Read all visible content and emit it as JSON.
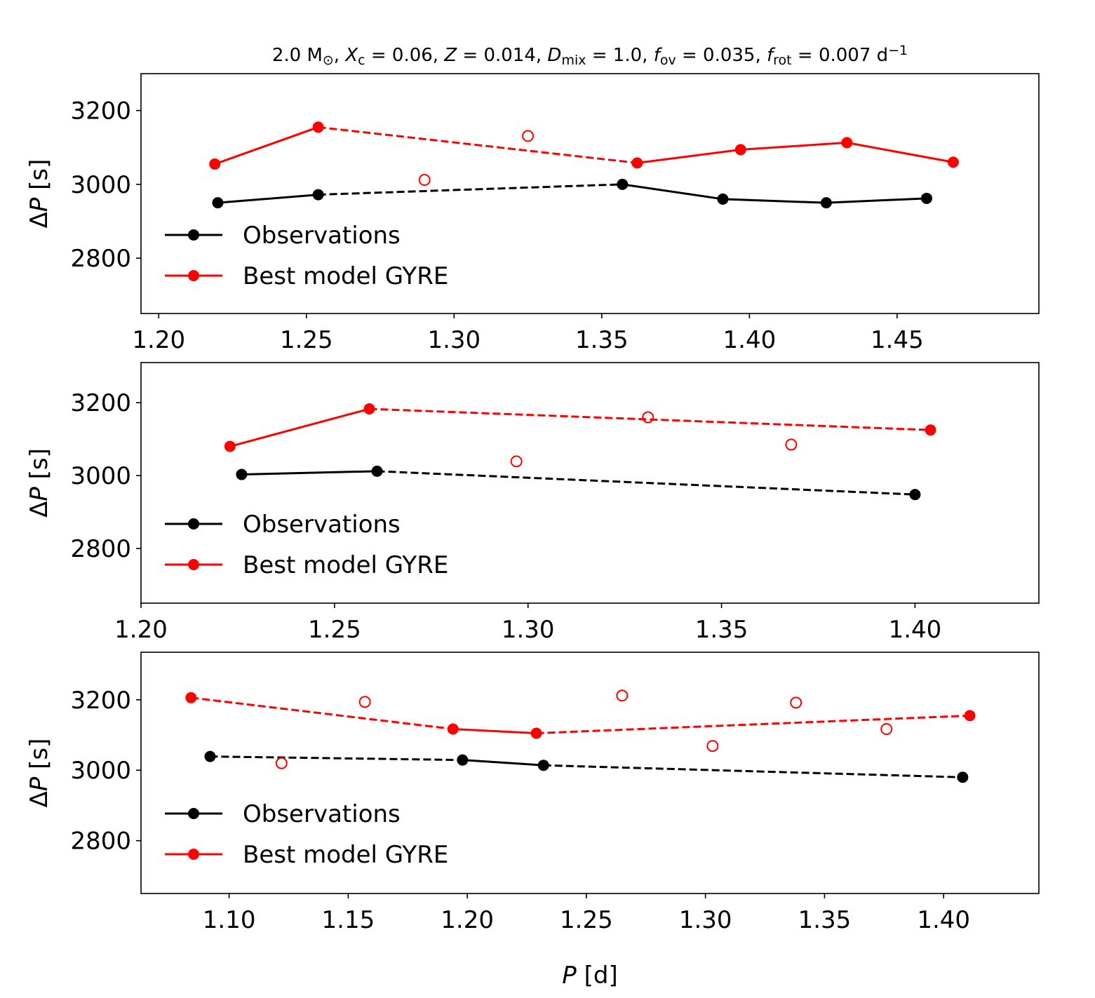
{
  "chart_data": {
    "type": "line",
    "suptitle": "2.0 M⊙, Xc = 0.06, Z = 0.014, Dmix = 1.0, fov = 0.035, frot = 0.007 d⁻¹",
    "title_parts": [
      {
        "t": "2.0 M",
        "s": "n"
      },
      {
        "t": "⊙",
        "s": "sub"
      },
      {
        "t": ", ",
        "s": "n"
      },
      {
        "t": "X",
        "s": "i"
      },
      {
        "t": "c",
        "s": "sub"
      },
      {
        "t": " = 0.06, ",
        "s": "n"
      },
      {
        "t": "Z",
        "s": "i"
      },
      {
        "t": " = 0.014, ",
        "s": "n"
      },
      {
        "t": "D",
        "s": "i"
      },
      {
        "t": "mix",
        "s": "sub"
      },
      {
        "t": " = 1.0, ",
        "s": "n"
      },
      {
        "t": "f",
        "s": "i"
      },
      {
        "t": "ov",
        "s": "sub"
      },
      {
        "t": " = 0.035, ",
        "s": "n"
      },
      {
        "t": "f",
        "s": "i"
      },
      {
        "t": "rot",
        "s": "sub"
      },
      {
        "t": " = 0.007 d",
        "s": "n"
      },
      {
        "t": "−1",
        "s": "sup"
      }
    ],
    "ylabel": "ΔP [s]",
    "xlabel": "P [d]",
    "legend": [
      "Observations",
      "Best model GYRE"
    ],
    "colors": {
      "observations": "#000000",
      "model": "#ff0000"
    },
    "panels": [
      {
        "xlim": [
          1.194,
          1.498
        ],
        "ylim": [
          2650,
          3300
        ],
        "xticks": [
          "1.20",
          "1.25",
          "1.30",
          "1.35",
          "1.40",
          "1.45"
        ],
        "yticks": [
          "2800",
          "3000",
          "3200"
        ],
        "observations": {
          "x": [
            1.22,
            1.254,
            1.357,
            1.391,
            1.426,
            1.46
          ],
          "y": [
            2950,
            2972,
            3000,
            2960,
            2950,
            2962
          ],
          "segments": [
            "solid",
            "dashed",
            "solid",
            "solid",
            "solid"
          ]
        },
        "model": {
          "x": [
            1.219,
            1.254,
            1.362,
            1.397,
            1.433,
            1.469
          ],
          "y": [
            3055,
            3155,
            3058,
            3094,
            3113,
            3060
          ],
          "segments": [
            "solid",
            "dashed",
            "solid",
            "solid",
            "solid"
          ]
        },
        "model_unmatched": {
          "x": [
            1.29,
            1.325
          ],
          "y": [
            3012,
            3131
          ]
        }
      },
      {
        "xlim": [
          1.2,
          1.432
        ],
        "ylim": [
          2650,
          3310
        ],
        "xticks": [
          "1.20",
          "1.25",
          "1.30",
          "1.35",
          "1.40"
        ],
        "yticks": [
          "2800",
          "3000",
          "3200"
        ],
        "observations": {
          "x": [
            1.226,
            1.261,
            1.4
          ],
          "y": [
            3003,
            3012,
            2948
          ],
          "segments": [
            "solid",
            "dashed"
          ]
        },
        "model": {
          "x": [
            1.223,
            1.259,
            1.404
          ],
          "y": [
            3080,
            3183,
            3125
          ],
          "segments": [
            "solid",
            "dashed"
          ]
        },
        "model_unmatched": {
          "x": [
            1.297,
            1.331,
            1.368
          ],
          "y": [
            3039,
            3160,
            3085
          ]
        }
      },
      {
        "xlim": [
          1.063,
          1.44
        ],
        "ylim": [
          2650,
          3335
        ],
        "xticks": [
          "1.10",
          "1.15",
          "1.20",
          "1.25",
          "1.30",
          "1.35",
          "1.40"
        ],
        "yticks": [
          "2800",
          "3000",
          "3200"
        ],
        "observations": {
          "x": [
            1.092,
            1.198,
            1.232,
            1.408
          ],
          "y": [
            3039,
            3029,
            3014,
            2980
          ],
          "segments": [
            "dashed",
            "solid",
            "dashed"
          ]
        },
        "model": {
          "x": [
            1.084,
            1.194,
            1.229,
            1.411
          ],
          "y": [
            3206,
            3117,
            3105,
            3155
          ],
          "segments": [
            "dashed",
            "solid",
            "dashed"
          ]
        },
        "model_unmatched": {
          "x": [
            1.122,
            1.157,
            1.265,
            1.303,
            1.338,
            1.376
          ],
          "y": [
            3020,
            3194,
            3212,
            3069,
            3192,
            3117
          ]
        }
      }
    ]
  }
}
